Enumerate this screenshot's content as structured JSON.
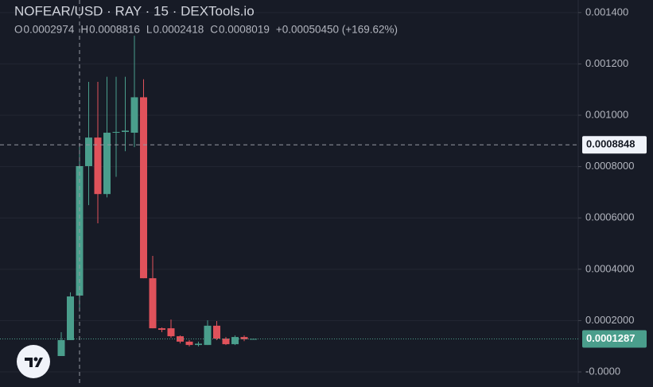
{
  "chart_data": {
    "type": "candlestick",
    "title": "NOFEAR/USD · RAY · 15 · DEXTools.io",
    "legend": [
      {
        "key": "O",
        "value": "0.0002974"
      },
      {
        "key": "H",
        "value": "0.0008816"
      },
      {
        "key": "L",
        "value": "0.0002418"
      },
      {
        "key": "C",
        "value": "0.0008019"
      }
    ],
    "change": "+0.00050450 (+169.62%)",
    "categories": [
      null,
      null,
      null,
      null,
      null,
      null,
      null,
      null,
      null,
      null,
      null,
      null,
      null,
      null,
      null,
      null,
      null,
      null,
      null,
      null,
      null,
      null
    ],
    "open": [
      6.19e-05,
      0.000124,
      0.0002974,
      0.0008019,
      0.000913,
      0.000693,
      0.000932,
      0.000935,
      0.000932,
      0.00107,
      0.000365,
      0.00017,
      0.00017,
      0.000139,
      0.000118,
      0.000105,
      0.000105,
      0.00018,
      0.00013,
      0.000108,
      0.000136,
      0.000127
    ],
    "high": [
      0.000155,
      0.00031,
      0.0008816,
      0.00113,
      0.00113,
      0.00115,
      0.00115,
      0.00115,
      0.00131,
      0.00114,
      0.000452,
      0.000173,
      0.000204,
      0.000142,
      0.000124,
      0.000118,
      0.000201,
      0.000198,
      0.000136,
      0.000142,
      0.000142,
      0.000129
    ],
    "low": [
      6.19e-05,
      0.000124,
      0.0002418,
      0.00065,
      0.000579,
      0.00068,
      0.00076,
      0.00086,
      0.000876,
      0.000365,
      0.00017,
      0.000155,
      0.000133,
      0.000111,
      9.9e-05,
      9.9e-05,
      0.000105,
      0.000124,
      0.000105,
      0.000105,
      0.00012,
      0.000127
    ],
    "close": [
      0.000124,
      0.000294,
      0.0008019,
      0.000913,
      0.000693,
      0.000932,
      0.000935,
      0.00094,
      0.00107,
      0.000365,
      0.00017,
      0.000164,
      0.000139,
      0.000118,
      0.000105,
      0.00011,
      0.00018,
      0.00013,
      0.000108,
      0.000136,
      0.000127,
      0.0001287
    ],
    "up_color": "#4a9e8c",
    "down_color": "#e0525b",
    "ylim": [
      -4.33e-05,
      0.001449
    ],
    "yticks": [
      {
        "value": 0,
        "label": "-0.0000"
      },
      {
        "value": 0.0002,
        "label": "0.0002000"
      },
      {
        "value": 0.0004,
        "label": "0.0004000"
      },
      {
        "value": 0.0006,
        "label": "0.0006000"
      },
      {
        "value": 0.0008,
        "label": "0.0008000"
      },
      {
        "value": 0.001,
        "label": "0.001000"
      },
      {
        "value": 0.0012,
        "label": "0.001200"
      },
      {
        "value": 0.0014,
        "label": "0.001400"
      }
    ],
    "grid": true,
    "last_price": 0.0001287,
    "crosshair": {
      "price": 0.0008848,
      "candle": 2
    }
  }
}
